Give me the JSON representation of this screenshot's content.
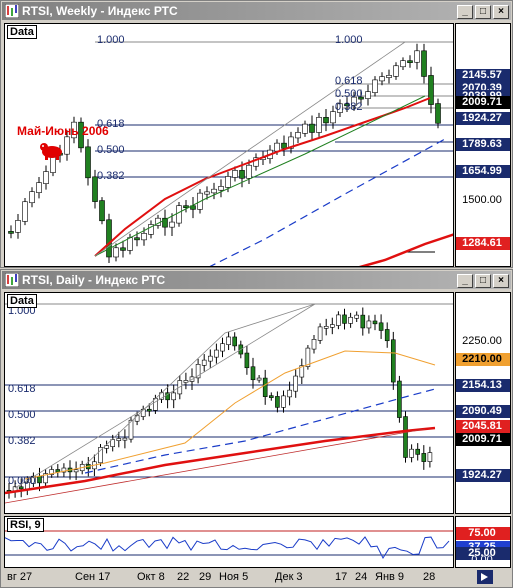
{
  "weekly": {
    "title": "RTSI, Weekly - Индекс РТС",
    "pane_label": "Data",
    "annotation": "Май-Июнь 2006",
    "fib_labels": {
      "left_top": "1.000",
      "left_618": "0.618",
      "left_500": "0.500",
      "left_382": "0.382",
      "right_top": "1.000",
      "right_618": "0.618",
      "right_500": "0.500",
      "right_382": "0.382"
    },
    "price_labels": [
      {
        "text": "2145.57",
        "style": "navy"
      },
      {
        "text": "2070.39",
        "style": "navy"
      },
      {
        "text": "2039.99",
        "style": "navy"
      },
      {
        "text": "2009.71",
        "style": "black"
      },
      {
        "text": "1924.27",
        "style": "navy"
      },
      {
        "text": "1789.63",
        "style": "navy"
      },
      {
        "text": "1654.99",
        "style": "navy"
      },
      {
        "text": "1500.00",
        "style": "plain"
      },
      {
        "text": "1284.61",
        "style": "red"
      }
    ]
  },
  "daily": {
    "title": "RTSI, Daily - Индекс РТС",
    "pane_label": "Data",
    "fib_labels": {
      "top": "1.000",
      "f618": "0.618",
      "f500": "0.500",
      "f382": "0.382",
      "bottom": "0.000"
    },
    "price_labels": [
      {
        "text": "2250.00",
        "style": "plain"
      },
      {
        "text": "2210.00",
        "style": "orange"
      },
      {
        "text": "2154.13",
        "style": "navy"
      },
      {
        "text": "2090.49",
        "style": "navy"
      },
      {
        "text": "2045.81",
        "style": "red"
      },
      {
        "text": "2009.71",
        "style": "black"
      },
      {
        "text": "1924.27",
        "style": "navy"
      }
    ]
  },
  "rsi": {
    "pane_label": "RSI, 9",
    "price_labels": [
      {
        "text": "75.00",
        "style": "red"
      },
      {
        "text": "37.25",
        "style": "blue"
      },
      {
        "text": "25.00",
        "style": "navy"
      },
      {
        "text": "0.00",
        "style": "plain"
      }
    ]
  },
  "date_axis": [
    "вг 27",
    "Сен 17",
    "Окт 8",
    "22",
    "29",
    "Ноя 5",
    "Дек 3",
    "17",
    "24",
    "Янв 9",
    "28"
  ],
  "window_buttons": {
    "minimize": "_",
    "maximize": "□",
    "close": "×"
  },
  "colors": {
    "ma_red": "#e01010",
    "ma_orange": "#f0a030",
    "ma_blue_dashed": "#1a3cc8",
    "fib_line": "#1a2b6d",
    "candle_up": "#ffffff",
    "candle_down": "#208020"
  }
}
